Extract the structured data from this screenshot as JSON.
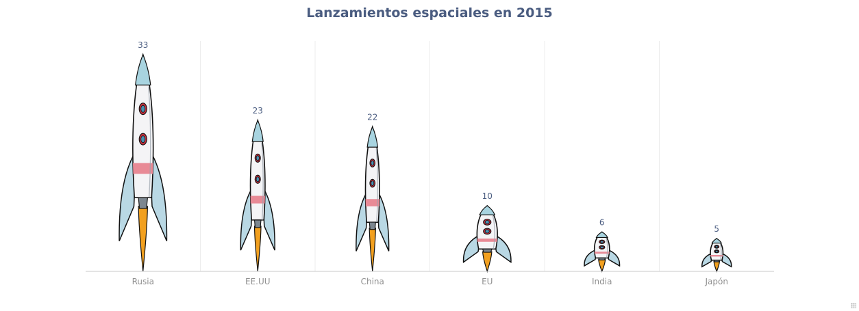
{
  "chart_data": {
    "type": "bar",
    "title": "Lanzamientos espaciales en 2015",
    "categories": [
      "Rusia",
      "EE.UU",
      "China",
      "EU",
      "India",
      "Japón"
    ],
    "values": [
      33,
      23,
      22,
      10,
      6,
      5
    ],
    "ylim": [
      0,
      33
    ],
    "grid": "vertical",
    "bar_style": "rocket-pictograph",
    "colors": {
      "title": "#4a5c80",
      "data_label": "#4a5c80",
      "tick_label": "#8f8f8f",
      "body": "#f4f4f6",
      "nose": "#a8d4e0",
      "band": "#e88a96",
      "window_ring": "#c6303f",
      "window_glass": "#4a8fb0",
      "flame": "#f2a01f",
      "outline": "#111111"
    }
  }
}
